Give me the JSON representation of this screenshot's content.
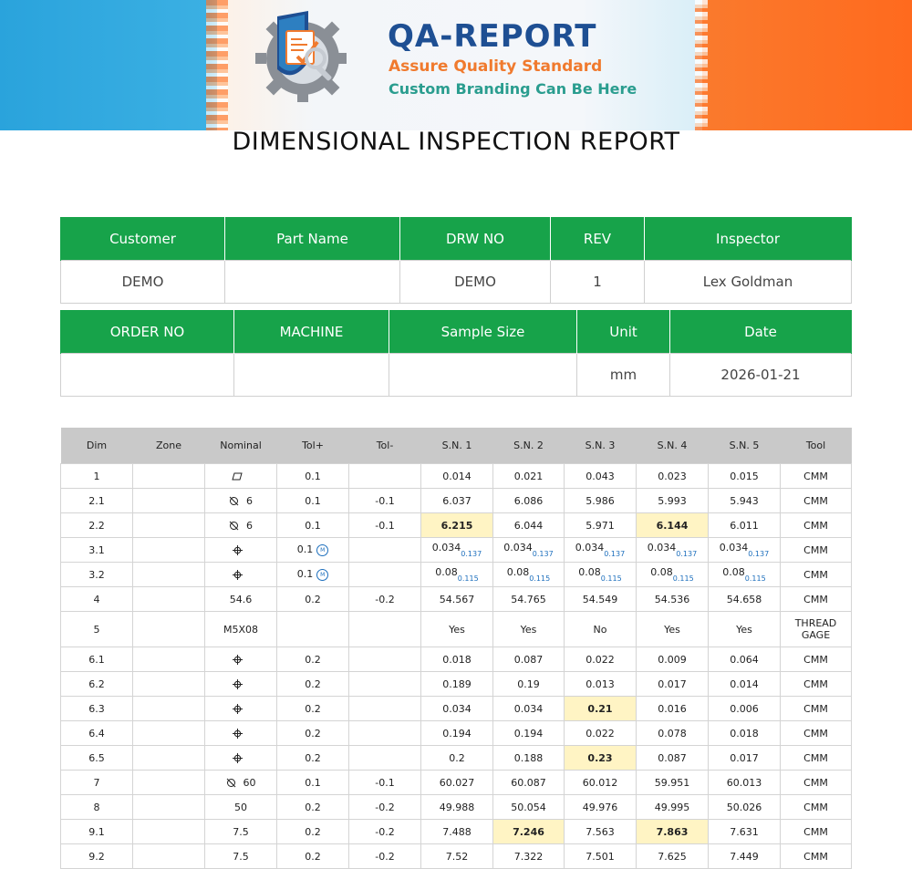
{
  "banner": {
    "brand_title": "QA-REPORT",
    "tagline": "Assure Quality Standard",
    "subline": "Custom Branding Can Be Here",
    "colors": {
      "left": "#2aa3dc",
      "right": "#ff6a1e",
      "title": "#1e4f93",
      "tagline": "#f07a2e",
      "subline": "#2a9d8f"
    }
  },
  "report_title": "DIMENSIONAL INSPECTION REPORT",
  "header_table_1": {
    "headers": [
      "Customer",
      "Part Name",
      "DRW NO",
      "REV",
      "Inspector"
    ],
    "values": [
      "DEMO",
      "",
      "DEMO",
      "1",
      "Lex Goldman"
    ]
  },
  "header_table_2": {
    "headers": [
      "ORDER NO",
      "MACHINE",
      "Sample Size",
      "Unit",
      "Date"
    ],
    "values": [
      "",
      "",
      "",
      "mm",
      "2026-01-21"
    ]
  },
  "colors": {
    "header_green": "#17a34a",
    "table_head_grey": "#c9c9c9",
    "highlight": "#fff4c4",
    "bonus_blue": "#1d6fbd"
  },
  "measurement_table": {
    "columns": [
      "Dim",
      "Zone",
      "Nominal",
      "Tol+",
      "Tol-",
      "S.N. 1",
      "S.N. 2",
      "S.N. 3",
      "S.N. 4",
      "S.N. 5",
      "Tool"
    ],
    "rows": [
      {
        "dim": "1",
        "zone": "",
        "symbol": "flatness",
        "nominal": "",
        "tol_plus": "0.1",
        "mmc": false,
        "tol_minus": "",
        "samples": [
          "0.014",
          "0.021",
          "0.043",
          "0.023",
          "0.015"
        ],
        "bonus": [],
        "flagged": [],
        "tool": "CMM"
      },
      {
        "dim": "2.1",
        "zone": "",
        "symbol": "diameter",
        "nominal": "6",
        "tol_plus": "0.1",
        "mmc": false,
        "tol_minus": "-0.1",
        "samples": [
          "6.037",
          "6.086",
          "5.986",
          "5.993",
          "5.943"
        ],
        "bonus": [],
        "flagged": [],
        "tool": "CMM"
      },
      {
        "dim": "2.2",
        "zone": "",
        "symbol": "diameter",
        "nominal": "6",
        "tol_plus": "0.1",
        "mmc": false,
        "tol_minus": "-0.1",
        "samples": [
          "6.215",
          "6.044",
          "5.971",
          "6.144",
          "6.011"
        ],
        "bonus": [],
        "flagged": [
          0,
          3
        ],
        "tool": "CMM"
      },
      {
        "dim": "3.1",
        "zone": "",
        "symbol": "position",
        "nominal": "",
        "tol_plus": "0.1",
        "mmc": true,
        "mmc_label": "M",
        "tol_minus": "",
        "samples": [
          "0.034",
          "0.034",
          "0.034",
          "0.034",
          "0.034"
        ],
        "bonus": [
          "0.137",
          "0.137",
          "0.137",
          "0.137",
          "0.137"
        ],
        "flagged": [],
        "tool": "CMM"
      },
      {
        "dim": "3.2",
        "zone": "",
        "symbol": "position",
        "nominal": "",
        "tol_plus": "0.1",
        "mmc": true,
        "mmc_label": "M",
        "tol_minus": "",
        "samples": [
          "0.08",
          "0.08",
          "0.08",
          "0.08",
          "0.08"
        ],
        "bonus": [
          "0.115",
          "0.115",
          "0.115",
          "0.115",
          "0.115"
        ],
        "flagged": [],
        "tool": "CMM"
      },
      {
        "dim": "4",
        "zone": "",
        "symbol": "",
        "nominal": "54.6",
        "tol_plus": "0.2",
        "mmc": false,
        "tol_minus": "-0.2",
        "samples": [
          "54.567",
          "54.765",
          "54.549",
          "54.536",
          "54.658"
        ],
        "bonus": [],
        "flagged": [],
        "tool": "CMM"
      },
      {
        "dim": "5",
        "zone": "",
        "symbol": "",
        "nominal": "M5X08",
        "tol_plus": "",
        "mmc": false,
        "tol_minus": "",
        "samples": [
          "Yes",
          "Yes",
          "No",
          "Yes",
          "Yes"
        ],
        "bonus": [],
        "flagged": [],
        "tool": "THREAD GAGE",
        "tall": true
      },
      {
        "dim": "6.1",
        "zone": "",
        "symbol": "position",
        "nominal": "",
        "tol_plus": "0.2",
        "mmc": false,
        "tol_minus": "",
        "samples": [
          "0.018",
          "0.087",
          "0.022",
          "0.009",
          "0.064"
        ],
        "bonus": [],
        "flagged": [],
        "tool": "CMM"
      },
      {
        "dim": "6.2",
        "zone": "",
        "symbol": "position",
        "nominal": "",
        "tol_plus": "0.2",
        "mmc": false,
        "tol_minus": "",
        "samples": [
          "0.189",
          "0.19",
          "0.013",
          "0.017",
          "0.014"
        ],
        "bonus": [],
        "flagged": [],
        "tool": "CMM"
      },
      {
        "dim": "6.3",
        "zone": "",
        "symbol": "position",
        "nominal": "",
        "tol_plus": "0.2",
        "mmc": false,
        "tol_minus": "",
        "samples": [
          "0.034",
          "0.034",
          "0.21",
          "0.016",
          "0.006"
        ],
        "bonus": [],
        "flagged": [
          2
        ],
        "tool": "CMM"
      },
      {
        "dim": "6.4",
        "zone": "",
        "symbol": "position",
        "nominal": "",
        "tol_plus": "0.2",
        "mmc": false,
        "tol_minus": "",
        "samples": [
          "0.194",
          "0.194",
          "0.022",
          "0.078",
          "0.018"
        ],
        "bonus": [],
        "flagged": [],
        "tool": "CMM"
      },
      {
        "dim": "6.5",
        "zone": "",
        "symbol": "position",
        "nominal": "",
        "tol_plus": "0.2",
        "mmc": false,
        "tol_minus": "",
        "samples": [
          "0.2",
          "0.188",
          "0.23",
          "0.087",
          "0.017"
        ],
        "bonus": [],
        "flagged": [
          2
        ],
        "tool": "CMM"
      },
      {
        "dim": "7",
        "zone": "",
        "symbol": "diameter",
        "nominal": "60",
        "tol_plus": "0.1",
        "mmc": false,
        "tol_minus": "-0.1",
        "samples": [
          "60.027",
          "60.087",
          "60.012",
          "59.951",
          "60.013"
        ],
        "bonus": [],
        "flagged": [],
        "tool": "CMM"
      },
      {
        "dim": "8",
        "zone": "",
        "symbol": "",
        "nominal": "50",
        "tol_plus": "0.2",
        "mmc": false,
        "tol_minus": "-0.2",
        "samples": [
          "49.988",
          "50.054",
          "49.976",
          "49.995",
          "50.026"
        ],
        "bonus": [],
        "flagged": [],
        "tool": "CMM"
      },
      {
        "dim": "9.1",
        "zone": "",
        "symbol": "",
        "nominal": "7.5",
        "tol_plus": "0.2",
        "mmc": false,
        "tol_minus": "-0.2",
        "samples": [
          "7.488",
          "7.246",
          "7.563",
          "7.863",
          "7.631"
        ],
        "bonus": [],
        "flagged": [
          1,
          3
        ],
        "tool": "CMM"
      },
      {
        "dim": "9.2",
        "zone": "",
        "symbol": "",
        "nominal": "7.5",
        "tol_plus": "0.2",
        "mmc": false,
        "tol_minus": "-0.2",
        "samples": [
          "7.52",
          "7.322",
          "7.501",
          "7.625",
          "7.449"
        ],
        "bonus": [],
        "flagged": [],
        "tool": "CMM"
      }
    ]
  }
}
